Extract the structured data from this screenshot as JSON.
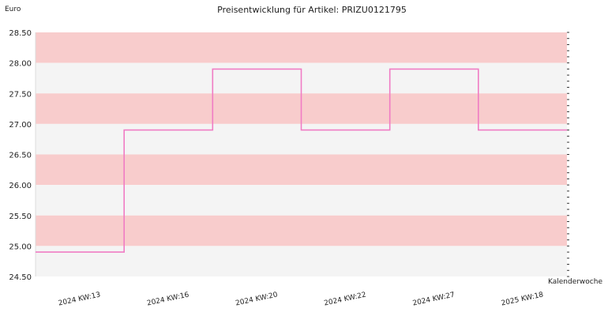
{
  "chart_data": {
    "type": "line",
    "step": "post",
    "title": "Preisentwicklung für Artikel: PRIZU0121795",
    "ylabel": "Euro",
    "xlabel": "Kalenderwoche",
    "ylim": [
      24.5,
      28.5
    ],
    "yticks": [
      "24.50",
      "25.00",
      "25.50",
      "26.00",
      "26.50",
      "27.00",
      "27.50",
      "28.00",
      "28.50"
    ],
    "categories": [
      "2024 KW:13",
      "2024 KW:16",
      "2024 KW:20",
      "2024 KW:22",
      "2024 KW:27",
      "2025 KW:18"
    ],
    "series": [
      {
        "values": [
          24.9,
          26.9,
          27.9,
          26.9,
          27.9,
          26.9
        ]
      }
    ],
    "grid": true,
    "band_colors": [
      "#f8cccc",
      "#f4f4f4"
    ],
    "line_color": "#f07cc4"
  }
}
